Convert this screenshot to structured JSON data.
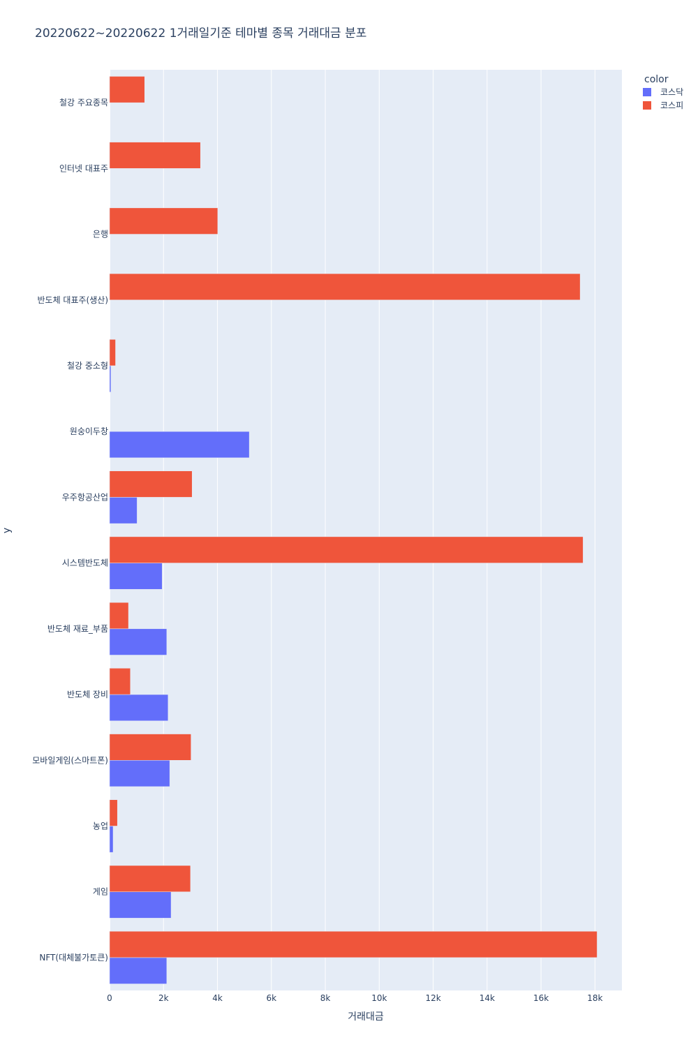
{
  "chart_data": {
    "type": "bar",
    "orientation": "horizontal",
    "barmode": "group",
    "title": "20220622~20220622 1거래일기준 테마별 종목 거래대금 분포",
    "xlabel": "거래대금",
    "ylabel": "y",
    "xlim": [
      0,
      19000
    ],
    "x_ticks": [
      0,
      2000,
      4000,
      6000,
      8000,
      10000,
      12000,
      14000,
      16000,
      18000
    ],
    "x_tick_labels": [
      "0",
      "2k",
      "4k",
      "6k",
      "8k",
      "10k",
      "12k",
      "14k",
      "16k",
      "18k"
    ],
    "grid": true,
    "legend_title": "color",
    "legend_position": "top-right",
    "categories": [
      "NFT(대체불가토큰)",
      "게임",
      "농업",
      "모바일게임(스마트폰)",
      "반도체 장비",
      "반도체 재료_부품",
      "시스템반도체",
      "우주항공산업",
      "원숭이두창",
      "철강 중소형",
      "반도체 대표주(생산)",
      "은행",
      "인터넷 대표주",
      "철강 주요종목"
    ],
    "series": [
      {
        "name": "코스닥",
        "color": "#636efa",
        "values": [
          2120,
          2280,
          130,
          2230,
          2170,
          2120,
          1950,
          1020,
          5180,
          50,
          null,
          null,
          null,
          null
        ]
      },
      {
        "name": "코스피",
        "color": "#ef553b",
        "values": [
          18080,
          3000,
          290,
          3020,
          770,
          700,
          17560,
          3060,
          null,
          220,
          17450,
          4010,
          3370,
          1300
        ]
      }
    ]
  }
}
